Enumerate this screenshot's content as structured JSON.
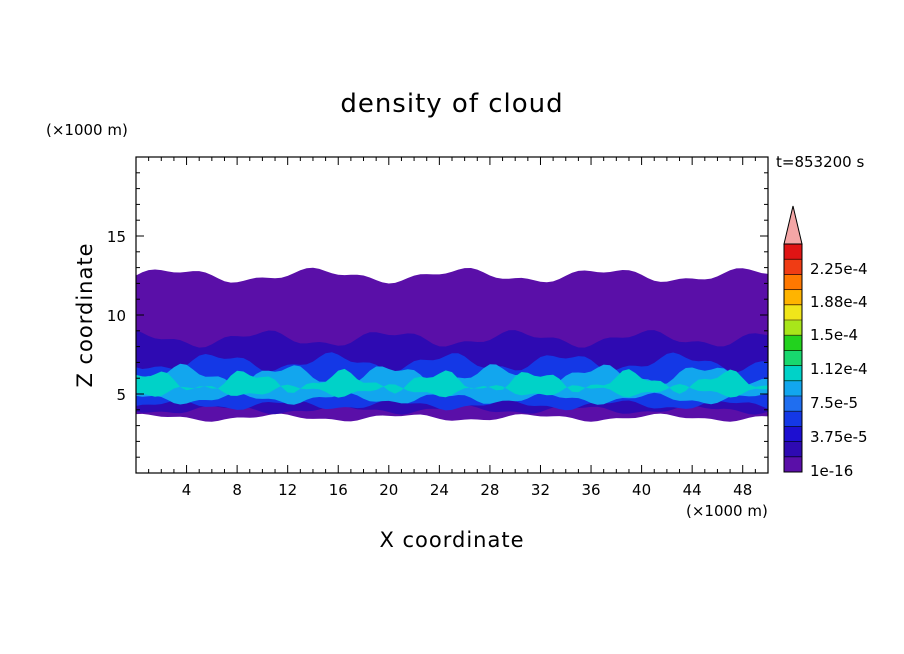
{
  "chart_data": {
    "type": "heatmap",
    "title": "density of cloud",
    "xlabel": "X coordinate",
    "ylabel": "Z coordinate",
    "x_unit": "(×1000 m)",
    "y_unit": "(×1000 m)",
    "time_label": "t=853200 s",
    "xlim": [
      0,
      50
    ],
    "ylim": [
      0,
      20
    ],
    "x_ticks": [
      "4",
      "8",
      "12",
      "16",
      "20",
      "24",
      "28",
      "32",
      "36",
      "40",
      "44",
      "48"
    ],
    "y_ticks": [
      "5",
      "10",
      "15"
    ],
    "colorbar": {
      "labels": [
        "2.25e-4",
        "1.88e-4",
        "1.5e-4",
        "1.12e-4",
        "7.5e-5",
        "3.75e-5",
        "1e-16"
      ],
      "levels": [
        1e-16,
        1.875e-05,
        3.75e-05,
        5.625e-05,
        7.5e-05,
        9.375e-05,
        0.0001125,
        0.00013125,
        0.00015,
        0.00016875,
        0.0001875,
        0.00020625,
        0.000225,
        0.00024375
      ],
      "colors": [
        "#5a0fa8",
        "#2e0ab2",
        "#1d0fd1",
        "#1438e6",
        "#1f6ef0",
        "#12a6ee",
        "#00d2c8",
        "#18d86e",
        "#22d21e",
        "#a8e61a",
        "#f0e61a",
        "#ffb400",
        "#ff7800",
        "#f03c14",
        "#e01414"
      ],
      "over_color": "#f4a6a6"
    },
    "layers": [
      {
        "name": "base",
        "z_bottom": 3.5,
        "z_top": 12.5,
        "color": "#5a0fa8"
      },
      {
        "name": "mid",
        "z_bottom": 4.0,
        "z_top": 8.5,
        "color": "#2e0ab2"
      },
      {
        "name": "low",
        "z_bottom": 4.3,
        "z_top": 7.0,
        "color": "#1438e6"
      },
      {
        "name": "core",
        "z_bottom": 4.7,
        "z_top": 6.2,
        "color": "#12a6ee"
      },
      {
        "name": "peak",
        "z_bottom": 5.2,
        "z_top": 5.8,
        "color": "#00d2c8"
      }
    ]
  }
}
